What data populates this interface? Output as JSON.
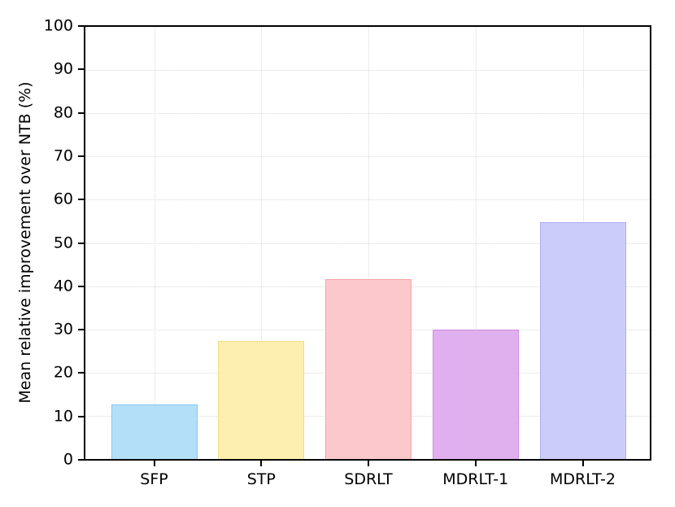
{
  "figure": {
    "background": "#ffffff"
  },
  "chart_data": {
    "type": "bar",
    "title": "",
    "xlabel": "",
    "ylabel": "Mean relative improvement over NTB (%)",
    "categories": [
      "SFP",
      "STP",
      "SDRLT",
      "MDRLT-1",
      "MDRLT-2"
    ],
    "values": [
      12.7,
      27.3,
      41.7,
      29.9,
      54.8
    ],
    "ylim": [
      0,
      100
    ],
    "yticks": [
      0,
      10,
      20,
      30,
      40,
      50,
      60,
      70,
      80,
      90,
      100
    ],
    "grid": {
      "visible": true,
      "style": "dotted",
      "color": "#d9d9d9",
      "axes": "both"
    },
    "legend": null,
    "bar_styles": [
      {
        "category": "SFP",
        "fill": "#B3E0F8",
        "border": "#82C8EF"
      },
      {
        "category": "STP",
        "fill": "#FCEFAF",
        "border": "#F1DD85"
      },
      {
        "category": "SDRLT",
        "fill": "#FDC8CB",
        "border": "#F7A3A8"
      },
      {
        "category": "MDRLT-1",
        "fill": "#DFB0ED",
        "border": "#D08CE2"
      },
      {
        "category": "MDRLT-2",
        "fill": "#CCCCF8",
        "border": "#ADADF0"
      }
    ],
    "axis_color": "#000000",
    "text_color": "#000000"
  }
}
